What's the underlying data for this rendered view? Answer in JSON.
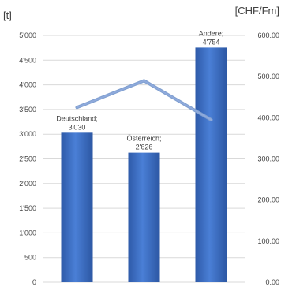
{
  "chart_data": {
    "type": "bar",
    "categories": [
      "Deutschland",
      "Österreich",
      "Andere"
    ],
    "series": [
      {
        "kind": "bar",
        "axis": "left",
        "values": [
          3030,
          2626,
          4754
        ],
        "value_labels": [
          "3'030",
          "2'626",
          "4'754"
        ],
        "color": "#4472c4"
      },
      {
        "kind": "line",
        "axis": "right",
        "values": [
          425,
          490,
          395
        ],
        "color": "#8faadc"
      }
    ],
    "y_left": {
      "unit": "[t]",
      "min": 0,
      "max": 5000,
      "ticks": [
        0,
        500,
        1000,
        1500,
        2000,
        2500,
        3000,
        3500,
        4000,
        4500,
        5000
      ],
      "tick_labels": [
        "0",
        "500",
        "1'000",
        "1'500",
        "2'000",
        "2'500",
        "3'000",
        "3'500",
        "4'000",
        "4'500",
        "5'000"
      ]
    },
    "y_right": {
      "unit": "[CHF/Fm]",
      "min": 0,
      "max": 600,
      "ticks": [
        0,
        100,
        200,
        300,
        400,
        500,
        600
      ],
      "tick_labels": [
        "0.00",
        "100.00",
        "200.00",
        "300.00",
        "400.00",
        "500.00",
        "600.00"
      ]
    },
    "grid": true,
    "legend": "none"
  }
}
